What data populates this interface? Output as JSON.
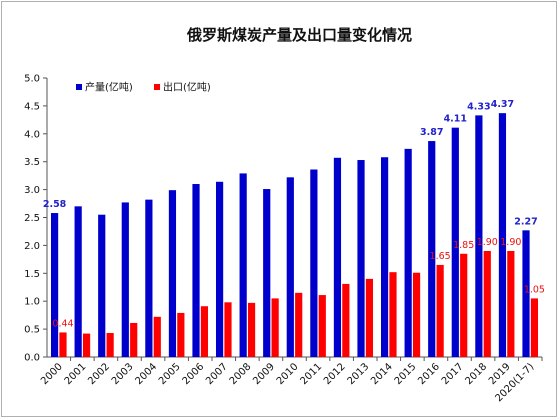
{
  "chart_data": {
    "type": "bar",
    "title": "俄罗斯煤炭产量及出口量变化情况",
    "categories": [
      "2000",
      "2001",
      "2002",
      "2003",
      "2004",
      "2005",
      "2006",
      "2007",
      "2008",
      "2009",
      "2010",
      "2011",
      "2012",
      "2013",
      "2014",
      "2015",
      "2016",
      "2017",
      "2018",
      "2019",
      "2020(1-7)"
    ],
    "series": [
      {
        "name": "产量(亿吨)",
        "color": "#0000cc",
        "values": [
          2.58,
          2.7,
          2.55,
          2.77,
          2.82,
          2.99,
          3.1,
          3.14,
          3.29,
          3.01,
          3.22,
          3.36,
          3.57,
          3.53,
          3.58,
          3.73,
          3.87,
          4.11,
          4.33,
          4.37,
          2.27
        ],
        "labels": {
          "0": "2.58",
          "16": "3.87",
          "17": "4.11",
          "18": "4.33",
          "19": "4.37",
          "20": "2.27"
        }
      },
      {
        "name": "出口(亿吨)",
        "color": "#ff0000",
        "values": [
          0.44,
          0.42,
          0.43,
          0.61,
          0.72,
          0.79,
          0.91,
          0.98,
          0.97,
          1.05,
          1.15,
          1.11,
          1.31,
          1.4,
          1.52,
          1.51,
          1.65,
          1.85,
          1.9,
          1.9,
          1.05
        ],
        "labels": {
          "0": "0.44",
          "16": "1.65",
          "17": "1.85",
          "18": "1.90",
          "19": "1.90",
          "20": "1.05"
        }
      }
    ],
    "ylim": [
      0,
      5.0
    ],
    "yticks": [
      "0.0",
      "0.5",
      "1.0",
      "1.5",
      "2.0",
      "2.5",
      "3.0",
      "3.5",
      "4.0",
      "4.5",
      "5.0"
    ],
    "grid": false,
    "legend_position": "top-left"
  }
}
